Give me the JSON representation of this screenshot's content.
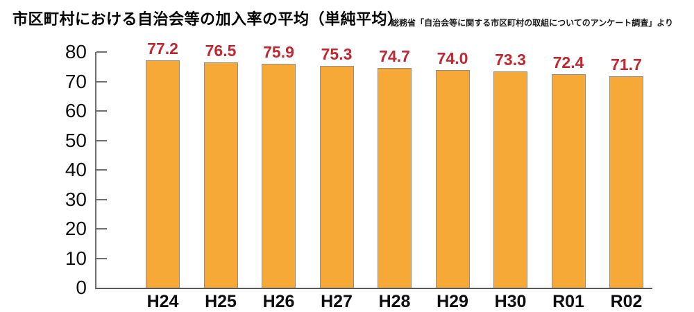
{
  "chart": {
    "title": "市区町村における自治会等の加入率の平均（単純平均）",
    "source": "総務省「自治会等に関する市区町村の取組についてのアンケート調査」より"
  },
  "chart_data": {
    "type": "bar",
    "title": "市区町村における自治会等の加入率の平均（単純平均）",
    "source_note": "総務省「自治会等に関する市区町村の取組についてのアンケート調査」より",
    "categories": [
      "H24",
      "H25",
      "H26",
      "H27",
      "H28",
      "H29",
      "H30",
      "R01",
      "R02"
    ],
    "values": [
      77.2,
      76.5,
      75.9,
      75.3,
      74.7,
      74.0,
      73.3,
      72.4,
      71.7
    ],
    "value_labels": [
      "77.2",
      "76.5",
      "75.9",
      "75.3",
      "74.7",
      "74.0",
      "73.3",
      "72.4",
      "71.7"
    ],
    "xlabel": "",
    "ylabel": "",
    "ylim": [
      0,
      80
    ],
    "yticks": [
      0,
      10,
      20,
      30,
      40,
      50,
      60,
      70,
      80
    ],
    "grid": false,
    "legend": "none",
    "colors": {
      "bar_fill": "#F7A938",
      "bar_border": "#8F8F8F",
      "value_label": "#C2272F",
      "axis": "#6E6E6E",
      "text": "#000000"
    }
  }
}
